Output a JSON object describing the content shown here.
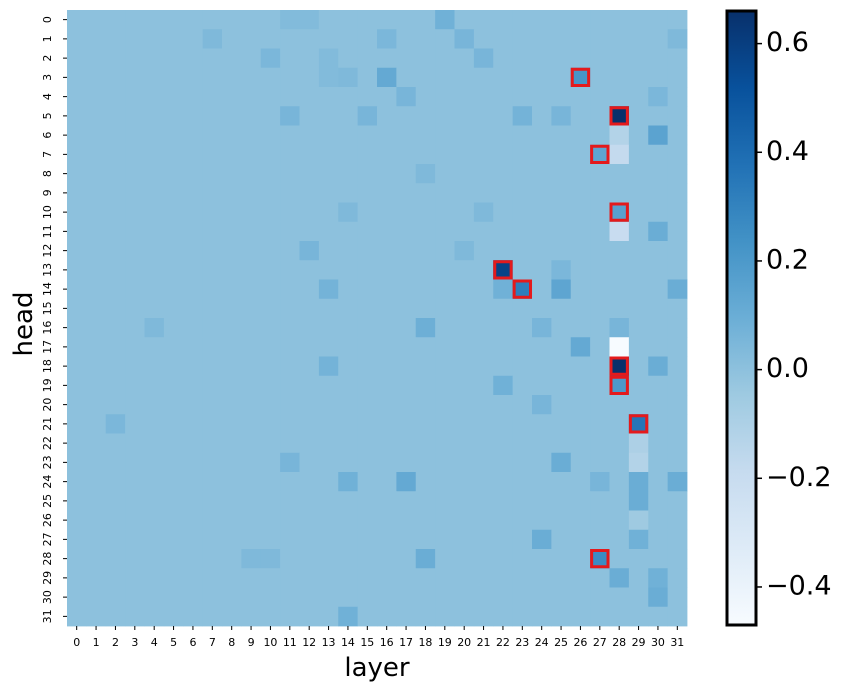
{
  "chart_data": {
    "type": "heatmap",
    "title": "",
    "xlabel": "layer",
    "ylabel": "head",
    "x_ticks": [
      "0",
      "1",
      "2",
      "3",
      "4",
      "5",
      "6",
      "7",
      "8",
      "9",
      "10",
      "11",
      "12",
      "13",
      "14",
      "15",
      "16",
      "17",
      "18",
      "19",
      "20",
      "21",
      "22",
      "23",
      "24",
      "25",
      "26",
      "27",
      "28",
      "29",
      "30",
      "31"
    ],
    "y_ticks": [
      "0",
      "1",
      "2",
      "3",
      "4",
      "5",
      "6",
      "7",
      "8",
      "9",
      "10",
      "11",
      "12",
      "13",
      "14",
      "15",
      "16",
      "17",
      "18",
      "19",
      "20",
      "21",
      "22",
      "23",
      "24",
      "25",
      "26",
      "27",
      "28",
      "29",
      "30",
      "31"
    ],
    "colormap": "Blues",
    "colorbar": {
      "vmin": -0.47,
      "vmax": 0.66,
      "ticks": [
        -0.4,
        -0.2,
        0.0,
        0.2,
        0.4,
        0.6
      ],
      "tick_labels": [
        "−0.4",
        "−0.2",
        "0.0",
        "0.2",
        "0.4",
        "0.6"
      ]
    },
    "background_value": 0.0,
    "notable_cells": [
      {
        "head": 0,
        "layer": 11,
        "value": 0.03
      },
      {
        "head": 0,
        "layer": 12,
        "value": 0.03
      },
      {
        "head": 0,
        "layer": 19,
        "value": 0.08
      },
      {
        "head": 1,
        "layer": 7,
        "value": 0.04
      },
      {
        "head": 1,
        "layer": 16,
        "value": 0.05
      },
      {
        "head": 1,
        "layer": 20,
        "value": 0.06
      },
      {
        "head": 1,
        "layer": 31,
        "value": 0.04
      },
      {
        "head": 2,
        "layer": 10,
        "value": 0.05
      },
      {
        "head": 2,
        "layer": 13,
        "value": 0.03
      },
      {
        "head": 2,
        "layer": 21,
        "value": 0.06
      },
      {
        "head": 3,
        "layer": 13,
        "value": 0.03
      },
      {
        "head": 3,
        "layer": 14,
        "value": 0.04
      },
      {
        "head": 3,
        "layer": 16,
        "value": 0.12
      },
      {
        "head": 3,
        "layer": 26,
        "value": 0.22
      },
      {
        "head": 4,
        "layer": 17,
        "value": 0.06
      },
      {
        "head": 4,
        "layer": 30,
        "value": 0.05
      },
      {
        "head": 5,
        "layer": 11,
        "value": 0.06
      },
      {
        "head": 5,
        "layer": 15,
        "value": 0.06
      },
      {
        "head": 5,
        "layer": 23,
        "value": 0.07
      },
      {
        "head": 5,
        "layer": 25,
        "value": 0.06
      },
      {
        "head": 5,
        "layer": 28,
        "value": 0.66
      },
      {
        "head": 6,
        "layer": 28,
        "value": -0.12
      },
      {
        "head": 6,
        "layer": 30,
        "value": 0.15
      },
      {
        "head": 7,
        "layer": 27,
        "value": 0.14
      },
      {
        "head": 7,
        "layer": 28,
        "value": -0.18
      },
      {
        "head": 8,
        "layer": 18,
        "value": 0.04
      },
      {
        "head": 10,
        "layer": 14,
        "value": 0.04
      },
      {
        "head": 10,
        "layer": 21,
        "value": 0.04
      },
      {
        "head": 10,
        "layer": 28,
        "value": 0.16
      },
      {
        "head": 11,
        "layer": 28,
        "value": -0.2
      },
      {
        "head": 11,
        "layer": 30,
        "value": 0.1
      },
      {
        "head": 12,
        "layer": 12,
        "value": 0.06
      },
      {
        "head": 12,
        "layer": 20,
        "value": 0.04
      },
      {
        "head": 13,
        "layer": 22,
        "value": 0.58
      },
      {
        "head": 13,
        "layer": 25,
        "value": 0.05
      },
      {
        "head": 14,
        "layer": 13,
        "value": 0.07
      },
      {
        "head": 14,
        "layer": 22,
        "value": 0.08
      },
      {
        "head": 14,
        "layer": 23,
        "value": 0.32
      },
      {
        "head": 14,
        "layer": 25,
        "value": 0.14
      },
      {
        "head": 14,
        "layer": 31,
        "value": 0.1
      },
      {
        "head": 16,
        "layer": 4,
        "value": 0.04
      },
      {
        "head": 16,
        "layer": 18,
        "value": 0.09
      },
      {
        "head": 16,
        "layer": 24,
        "value": 0.06
      },
      {
        "head": 16,
        "layer": 28,
        "value": 0.06
      },
      {
        "head": 17,
        "layer": 26,
        "value": 0.12
      },
      {
        "head": 17,
        "layer": 28,
        "value": -0.47
      },
      {
        "head": 18,
        "layer": 13,
        "value": 0.07
      },
      {
        "head": 18,
        "layer": 28,
        "value": 0.66
      },
      {
        "head": 18,
        "layer": 30,
        "value": 0.1
      },
      {
        "head": 19,
        "layer": 22,
        "value": 0.08
      },
      {
        "head": 19,
        "layer": 28,
        "value": 0.2
      },
      {
        "head": 20,
        "layer": 24,
        "value": 0.06
      },
      {
        "head": 21,
        "layer": 2,
        "value": 0.05
      },
      {
        "head": 21,
        "layer": 29,
        "value": 0.36
      },
      {
        "head": 22,
        "layer": 29,
        "value": -0.1
      },
      {
        "head": 23,
        "layer": 11,
        "value": 0.06
      },
      {
        "head": 23,
        "layer": 25,
        "value": 0.1
      },
      {
        "head": 23,
        "layer": 29,
        "value": -0.12
      },
      {
        "head": 24,
        "layer": 14,
        "value": 0.08
      },
      {
        "head": 24,
        "layer": 17,
        "value": 0.12
      },
      {
        "head": 24,
        "layer": 27,
        "value": 0.06
      },
      {
        "head": 24,
        "layer": 29,
        "value": 0.1
      },
      {
        "head": 24,
        "layer": 31,
        "value": 0.1
      },
      {
        "head": 25,
        "layer": 29,
        "value": 0.1
      },
      {
        "head": 26,
        "layer": 29,
        "value": -0.05
      },
      {
        "head": 27,
        "layer": 24,
        "value": 0.1
      },
      {
        "head": 27,
        "layer": 29,
        "value": 0.08
      },
      {
        "head": 28,
        "layer": 9,
        "value": 0.04
      },
      {
        "head": 28,
        "layer": 10,
        "value": 0.04
      },
      {
        "head": 28,
        "layer": 18,
        "value": 0.1
      },
      {
        "head": 28,
        "layer": 27,
        "value": 0.26
      },
      {
        "head": 29,
        "layer": 28,
        "value": 0.1
      },
      {
        "head": 29,
        "layer": 30,
        "value": 0.08
      },
      {
        "head": 30,
        "layer": 30,
        "value": 0.1
      },
      {
        "head": 31,
        "layer": 14,
        "value": 0.08
      }
    ],
    "highlighted_cells": [
      {
        "head": 3,
        "layer": 26
      },
      {
        "head": 5,
        "layer": 28
      },
      {
        "head": 7,
        "layer": 27
      },
      {
        "head": 10,
        "layer": 28
      },
      {
        "head": 13,
        "layer": 22
      },
      {
        "head": 14,
        "layer": 23
      },
      {
        "head": 18,
        "layer": 28
      },
      {
        "head": 19,
        "layer": 28
      },
      {
        "head": 21,
        "layer": 29
      },
      {
        "head": 28,
        "layer": 27
      }
    ],
    "highlight_color": "#e41a1c"
  }
}
